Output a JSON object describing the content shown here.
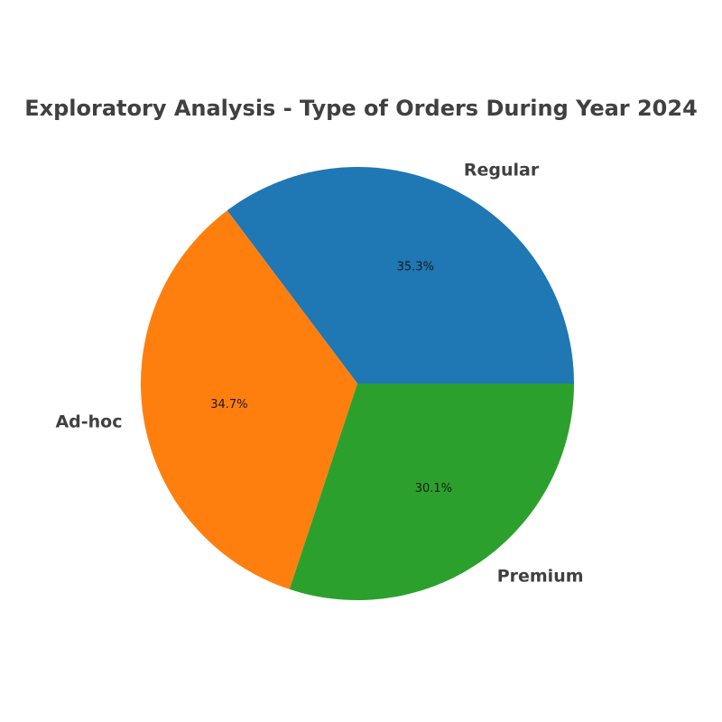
{
  "chart_data": {
    "type": "pie",
    "title": "Exploratory Analysis - Type of Orders During Year 2024",
    "labels": [
      "Regular",
      "Ad-hoc",
      "Premium"
    ],
    "values": [
      35.3,
      34.7,
      30.1
    ],
    "percent_labels": [
      "35.3%",
      "34.7%",
      "30.1%"
    ],
    "colors": [
      "#1f77b4",
      "#ff7f0e",
      "#2ca02c"
    ],
    "start_angle": 0,
    "direction": "counterclockwise",
    "legend": "none"
  }
}
